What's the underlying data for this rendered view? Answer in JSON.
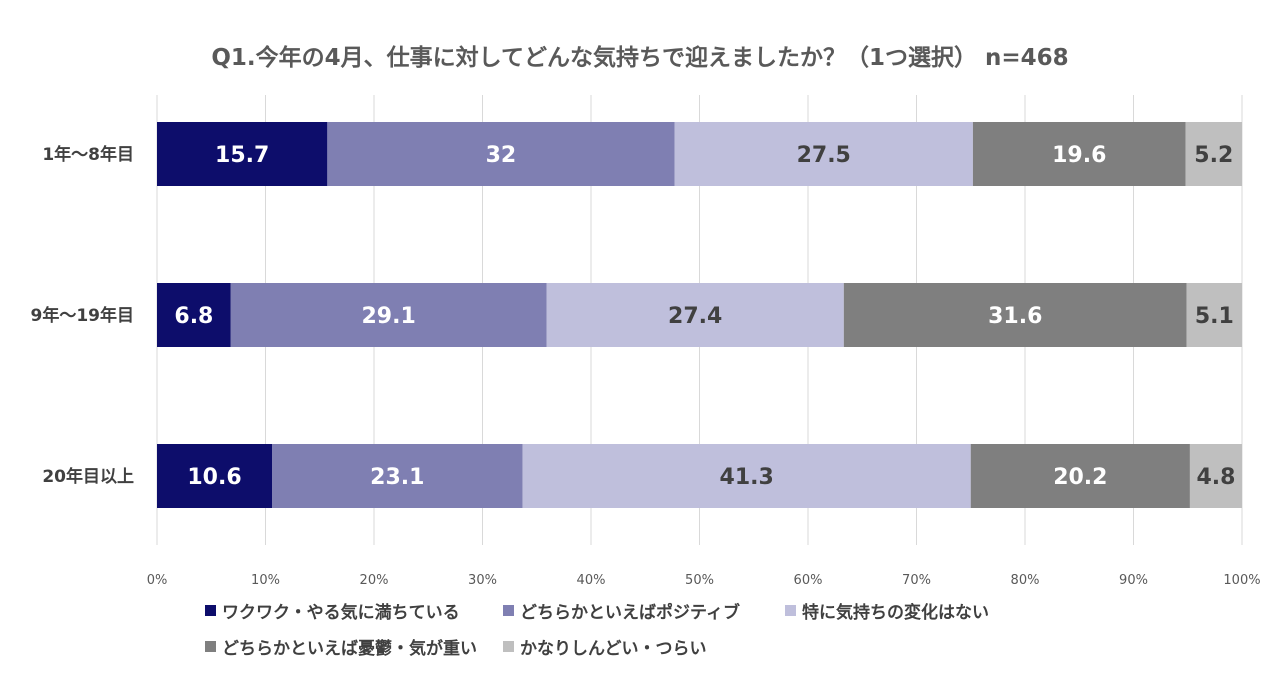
{
  "chart_data": {
    "type": "bar",
    "orientation": "horizontal",
    "stacked": true,
    "percent": true,
    "title": "Q1.今年の4月、仕事に対してどんな気持ちで迎えましたか？（1つ選択） n=468",
    "categories": [
      "1年～8年目",
      "9年～19年目",
      "20年目以上"
    ],
    "series": [
      {
        "name": "ワクワク・やる気に満ちている",
        "color": "#0d0d6b",
        "label_color": "#ffffff",
        "values": [
          15.7,
          6.8,
          10.6
        ]
      },
      {
        "name": "どちらかといえばポジティブ",
        "color": "#7f7fb2",
        "label_color": "#ffffff",
        "values": [
          32,
          29.1,
          23.1
        ]
      },
      {
        "name": "特に気持ちの変化はない",
        "color": "#bfbfdc",
        "label_color": "#404040",
        "values": [
          27.5,
          27.4,
          41.3
        ]
      },
      {
        "name": "どちらかといえば憂鬱・気が重い",
        "color": "#7f7f7f",
        "label_color": "#ffffff",
        "values": [
          19.6,
          31.6,
          20.2
        ]
      },
      {
        "name": "かなりしんどい・つらい",
        "color": "#bfbfbf",
        "label_color": "#404040",
        "values": [
          5.2,
          5.1,
          4.8
        ]
      }
    ],
    "xlim": [
      0,
      100
    ],
    "xticks": [
      "0%",
      "10%",
      "20%",
      "30%",
      "40%",
      "50%",
      "60%",
      "70%",
      "80%",
      "90%",
      "100%"
    ],
    "grid": true,
    "legend_position": "bottom"
  }
}
